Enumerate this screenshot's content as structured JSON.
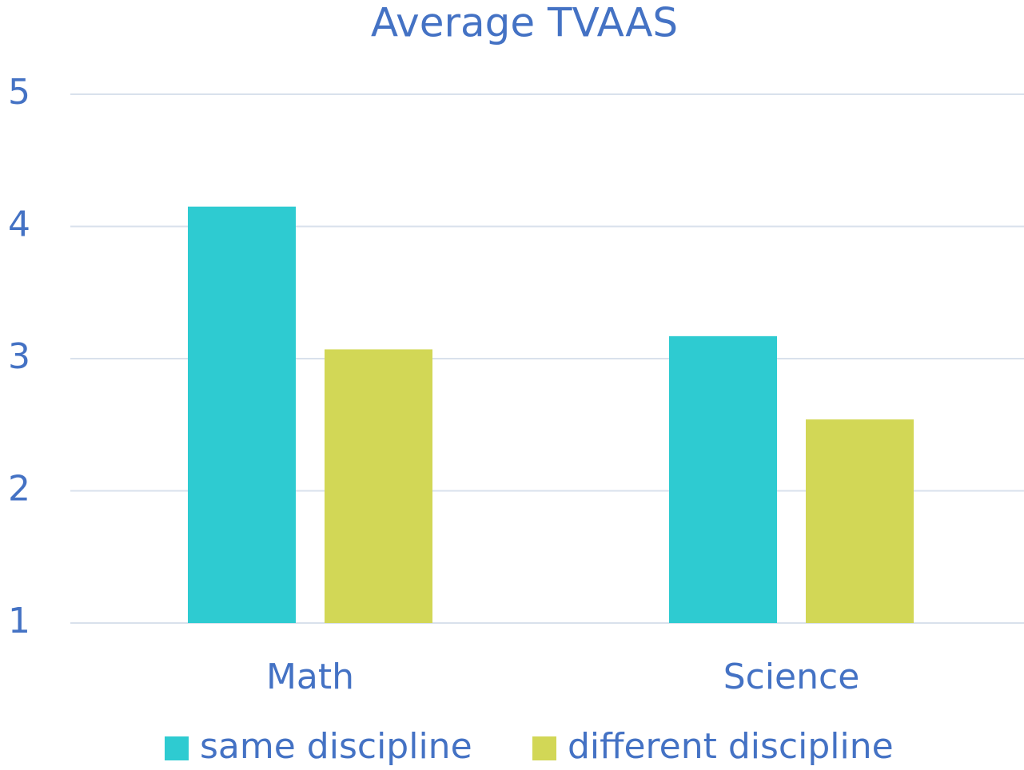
{
  "chart_data": {
    "type": "bar",
    "title": "Average TVAAS",
    "categories": [
      "Math",
      "Science"
    ],
    "series": [
      {
        "name": "same discipline",
        "color": "#2ecbd1",
        "values": [
          4.15,
          3.17
        ]
      },
      {
        "name": "different discipline",
        "color": "#d2d756",
        "values": [
          3.07,
          2.54
        ]
      }
    ],
    "ylim": [
      1,
      5
    ],
    "yticks": [
      1,
      2,
      3,
      4,
      5
    ],
    "grid": true,
    "legend": "bottom"
  }
}
